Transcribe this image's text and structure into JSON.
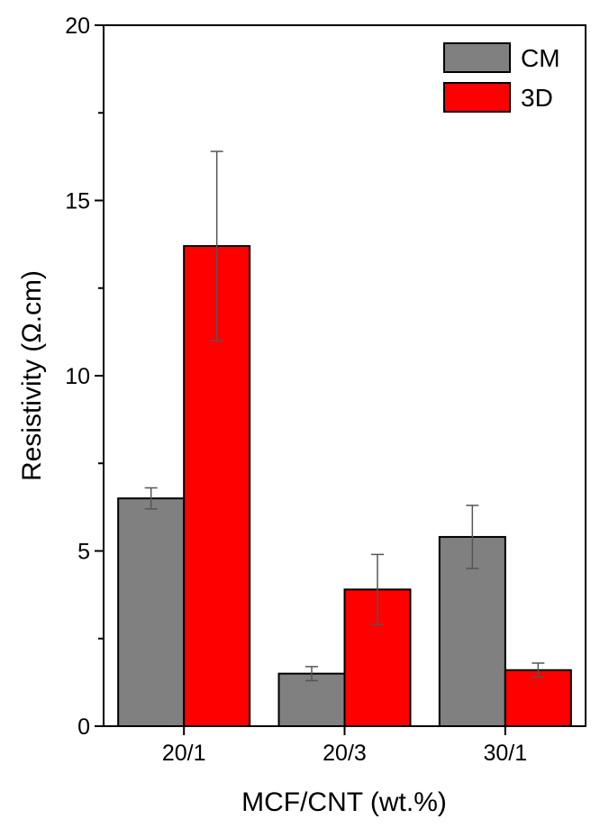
{
  "chart_data": {
    "type": "bar",
    "title": "",
    "xlabel": "MCF/CNT (wt.%)",
    "ylabel": "Resistivity (Ω.cm)",
    "ylim": [
      0,
      20
    ],
    "yticks": [
      0,
      5,
      10,
      15,
      20
    ],
    "categories": [
      "20/1",
      "20/3",
      "30/1"
    ],
    "series": [
      {
        "name": "CM",
        "color": "#808080",
        "values": [
          6.5,
          1.5,
          5.4
        ],
        "error_low": [
          6.2,
          1.3,
          4.5
        ],
        "error_high": [
          6.8,
          1.7,
          6.3
        ]
      },
      {
        "name": "3D",
        "color": "#ff0000",
        "values": [
          13.7,
          3.9,
          1.6
        ],
        "error_low": [
          11.0,
          2.9,
          1.4
        ],
        "error_high": [
          16.4,
          4.9,
          1.8
        ]
      }
    ],
    "legend_position": "top-right",
    "grid": false
  }
}
